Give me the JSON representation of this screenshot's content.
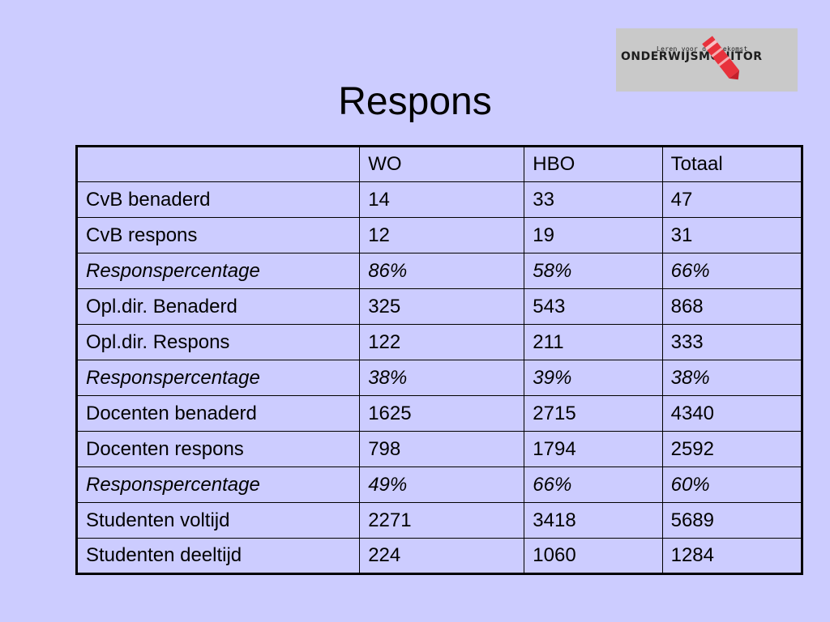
{
  "slide": {
    "title": "Respons"
  },
  "logo": {
    "tagline": "Leren voor de toekomst",
    "name": "ONDERWIJSMONITOR"
  },
  "table": {
    "headers": [
      "",
      "WO",
      "HBO",
      "Totaal"
    ],
    "rows": [
      {
        "label": "CvB benaderd",
        "wo": "14",
        "hbo": "33",
        "totaal": "47",
        "italic": false
      },
      {
        "label": "CvB respons",
        "wo": "12",
        "hbo": "19",
        "totaal": "31",
        "italic": false
      },
      {
        "label": "Responspercentage",
        "wo": "86%",
        "hbo": "58%",
        "totaal": "66%",
        "italic": true
      },
      {
        "label": "Opl.dir. Benaderd",
        "wo": "325",
        "hbo": "543",
        "totaal": "868",
        "italic": false
      },
      {
        "label": "Opl.dir. Respons",
        "wo": "122",
        "hbo": "211",
        "totaal": "333",
        "italic": false
      },
      {
        "label": "Responspercentage",
        "wo": "38%",
        "hbo": "39%",
        "totaal": "38%",
        "italic": true
      },
      {
        "label": "Docenten benaderd",
        "wo": "1625",
        "hbo": "2715",
        "totaal": "4340",
        "italic": false
      },
      {
        "label": "Docenten respons",
        "wo": "798",
        "hbo": "1794",
        "totaal": "2592",
        "italic": false
      },
      {
        "label": "Responspercentage",
        "wo": "49%",
        "hbo": "66%",
        "totaal": "60%",
        "italic": true
      },
      {
        "label": "Studenten voltijd",
        "wo": "2271",
        "hbo": "3418",
        "totaal": "5689",
        "italic": false
      },
      {
        "label": "Studenten deeltijd",
        "wo": "224",
        "hbo": "1060",
        "totaal": "1284",
        "italic": false
      }
    ]
  },
  "colors": {
    "background": "#ccccff",
    "logo_background": "#c9c9c9",
    "logo_accent": "#e8323c"
  }
}
